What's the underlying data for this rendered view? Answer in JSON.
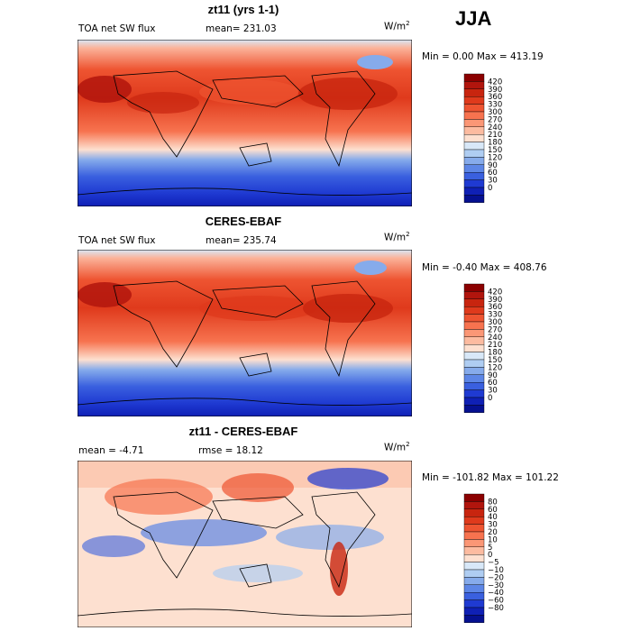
{
  "season": "JJA",
  "chart_data": [
    {
      "type": "heatmap",
      "title": "zt11 (yrs 1-1)",
      "variable": "TOA net SW flux",
      "stat_text": "mean=  231.03",
      "units": "W/m",
      "units_exp": "2",
      "minmax_text": "Min =    0.00 Max = 413.19",
      "min": 0.0,
      "max": 413.19,
      "colorbar": {
        "levels": [
          "420",
          "390",
          "360",
          "330",
          "300",
          "270",
          "240",
          "210",
          "180",
          "150",
          "120",
          "90",
          "60",
          "30",
          "0"
        ],
        "colors": [
          "#8b0000",
          "#b1150d",
          "#c8250f",
          "#df3a1c",
          "#ee5431",
          "#f7734f",
          "#fb9776",
          "#fcbba0",
          "#fde0d0",
          "#d8e8f8",
          "#afcdf2",
          "#86abeb",
          "#5d86e6",
          "#3a60df",
          "#1f3ad2",
          "#0f20b5",
          "#051090"
        ]
      }
    },
    {
      "type": "heatmap",
      "title": "CERES-EBAF",
      "variable": "TOA net SW flux",
      "stat_text": "mean=  235.74",
      "units": "W/m",
      "units_exp": "2",
      "minmax_text": "Min =  -0.40 Max = 408.76",
      "min": -0.4,
      "max": 408.76,
      "colorbar": {
        "levels": [
          "420",
          "390",
          "360",
          "330",
          "300",
          "270",
          "240",
          "210",
          "180",
          "150",
          "120",
          "90",
          "60",
          "30",
          "0"
        ],
        "colors": [
          "#8b0000",
          "#b1150d",
          "#c8250f",
          "#df3a1c",
          "#ee5431",
          "#f7734f",
          "#fb9776",
          "#fcbba0",
          "#fde0d0",
          "#d8e8f8",
          "#afcdf2",
          "#86abeb",
          "#5d86e6",
          "#3a60df",
          "#1f3ad2",
          "#0f20b5",
          "#051090"
        ]
      }
    },
    {
      "type": "heatmap",
      "title": "zt11 - CERES-EBAF",
      "stat_text": "mean =   -4.71",
      "rmse_text": "rmse =   18.12",
      "units": "W/m",
      "units_exp": "2",
      "minmax_text": "Min = -101.82 Max = 101.22",
      "min": -101.82,
      "max": 101.22,
      "colorbar": {
        "levels": [
          "80",
          "60",
          "40",
          "30",
          "20",
          "10",
          "5",
          "0",
          "−5",
          "−10",
          "−20",
          "−30",
          "−40",
          "−60",
          "−80"
        ],
        "colors": [
          "#8b0000",
          "#b1150d",
          "#c8250f",
          "#df3a1c",
          "#ee5431",
          "#f7734f",
          "#fb9776",
          "#fcbba0",
          "#fde0d0",
          "#d8e8f8",
          "#afcdf2",
          "#86abeb",
          "#5d86e6",
          "#3a60df",
          "#1f3ad2",
          "#0f20b5",
          "#051090"
        ]
      }
    }
  ]
}
